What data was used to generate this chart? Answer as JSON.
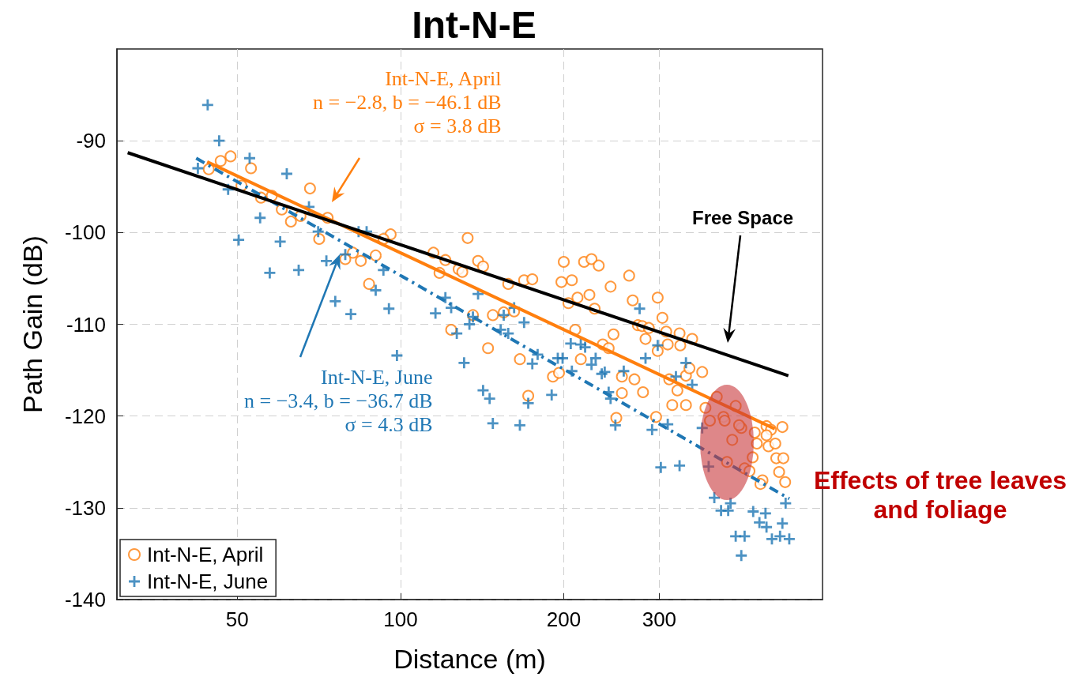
{
  "chart_data": {
    "type": "scatter",
    "title": "Int-N-E",
    "xlabel": "Distance (m)",
    "ylabel": "Path Gain (dB)",
    "log": "x",
    "grid": true,
    "legend": "bottom left",
    "xlim": [
      30,
      600
    ],
    "xticks": [
      50,
      100,
      200,
      300
    ],
    "ylim": [
      -140,
      -80
    ],
    "yticks": [
      -140,
      -130,
      -120,
      -110,
      -100,
      -90
    ],
    "annotations": [
      "Int-N-E, April\nn = −2.8, b = −46.1 dB\nσ = 3.8 dB",
      "Int-N-E, June\nn = −3.4, b = −36.7 dB\nσ = 4.3 dB",
      "Free Space",
      "Effects of tree leaves and foliage"
    ],
    "series": [
      {
        "name": "Int-N-E, April",
        "color": "#ff7f0e",
        "marker": "circle",
        "x": [
          44.3,
          46.6,
          48.6,
          53.0,
          50.9,
          55.3,
          57.9,
          60.4,
          62.8,
          65.4,
          68.1,
          70.8,
          73.4,
          81.7,
          79.1,
          84.5,
          87.5,
          90.0,
          95.9,
          93.0,
          115,
          121,
          128,
          130,
          118,
          133,
          139,
          142,
          136,
          124,
          145,
          148,
          155,
          162,
          158,
          169,
          175,
          166,
          172,
          191,
          196,
          198,
          207,
          200,
          204,
          212,
          223,
          228,
          218,
          225,
          232,
          244,
          210,
          215,
          236,
          242,
          247,
          256,
          256,
          270,
          280,
          250,
          264,
          268,
          274,
          279,
          287,
          283,
          298,
          304,
          309,
          298,
          311,
          327,
          328,
          345,
          360,
          313,
          324,
          336,
          341,
          317,
          336,
          296,
          365,
          383,
          372,
          394,
          415,
          396,
          409,
          425,
          421,
          450,
          454,
          400,
          431,
          440,
          446,
          465,
          461,
          473,
          482,
          477,
          491,
          506,
          493,
          508,
          499,
          512,
          473
        ],
        "values": [
          -93.1,
          -92.2,
          -91.7,
          -93.0,
          -94.9,
          -96.2,
          -96.0,
          -97.5,
          -98.8,
          -98.2,
          -95.2,
          -100.7,
          -98.4,
          -102.2,
          -102.9,
          -103.1,
          -105.6,
          -102.5,
          -100.2,
          -100.7,
          -102.2,
          -103.0,
          -104.0,
          -104.3,
          -104.4,
          -100.6,
          -103.1,
          -103.7,
          -109.0,
          -110.6,
          -112.6,
          -109.0,
          -108.7,
          -108.6,
          -105.6,
          -105.2,
          -105.1,
          -113.8,
          -117.8,
          -115.7,
          -115.3,
          -105.4,
          -105.2,
          -103.2,
          -107.7,
          -107.1,
          -106.8,
          -108.3,
          -103.2,
          -102.9,
          -103.6,
          -105.9,
          -110.6,
          -113.8,
          -112.2,
          -112.6,
          -111.1,
          -115.7,
          -117.5,
          -116.0,
          -117.4,
          -120.2,
          -104.7,
          -107.4,
          -110.1,
          -110.2,
          -110.4,
          -111.6,
          -107.1,
          -109.3,
          -110.8,
          -112.9,
          -112.2,
          -111.0,
          -112.3,
          -111.6,
          -115.2,
          -116.0,
          -117.2,
          -115.6,
          -114.8,
          -118.8,
          -118.8,
          -120.1,
          -119.1,
          -117.9,
          -120.5,
          -120.1,
          -118.9,
          -120.5,
          -122.6,
          -121.3,
          -121.0,
          -121.8,
          -123.0,
          -125.0,
          -125.7,
          -126.0,
          -124.5,
          -127.0,
          -127.4,
          -121.1,
          -121.5,
          -123.3,
          -123.0,
          -121.2,
          -124.6,
          -124.6,
          -126.1,
          -127.2,
          -122.1
        ]
      },
      {
        "name": "Int-N-E, June",
        "color": "#1f77b4",
        "marker": "cross",
        "x": [
          44.1,
          46.3,
          52.7,
          61.7,
          42.3,
          48.1,
          50.3,
          55.1,
          60.0,
          57.4,
          64.9,
          67.8,
          70.5,
          73.0,
          75.8,
          81.0,
          79.1,
          83.7,
          86.6,
          90.0,
          93.0,
          95.2,
          98.5,
          116,
          121,
          124,
          127,
          131,
          134,
          139,
          136,
          142,
          146,
          148,
          153,
          155,
          158,
          162,
          166,
          169,
          172,
          175,
          179,
          190,
          195,
          199,
          206,
          207,
          215,
          219,
          225,
          229,
          235,
          238,
          242,
          244,
          249,
          258,
          276,
          283,
          291,
          298,
          311,
          322,
          336,
          345,
          302,
          327,
          360,
          370,
          379,
          390,
          402,
          406,
          415,
          425,
          431,
          447,
          459,
          471,
          473,
          484,
          501,
          506,
          513,
          521
        ],
        "values": [
          -86.1,
          -90.0,
          -91.9,
          -93.6,
          -93.0,
          -95.3,
          -100.8,
          -98.4,
          -101.0,
          -104.4,
          -104.1,
          -97.2,
          -99.9,
          -103.1,
          -107.5,
          -108.9,
          -102.4,
          -99.9,
          -99.9,
          -106.3,
          -104.1,
          -108.3,
          -113.4,
          -108.8,
          -107.1,
          -108.2,
          -111.0,
          -114.2,
          -110.0,
          -106.7,
          -109.2,
          -117.2,
          -118.1,
          -120.8,
          -110.6,
          -109.0,
          -111.0,
          -108.2,
          -121.0,
          -109.8,
          -118.6,
          -114.3,
          -113.3,
          -117.7,
          -113.7,
          -113.7,
          -112.1,
          -115.1,
          -112.2,
          -112.5,
          -114.4,
          -113.7,
          -115.4,
          -115.2,
          -117.4,
          -118.1,
          -121.0,
          -115.1,
          -108.3,
          -113.7,
          -121.5,
          -112.3,
          -120.9,
          -115.7,
          -114.2,
          -116.6,
          -125.6,
          -125.4,
          -121.3,
          -125.5,
          -128.9,
          -130.3,
          -130.3,
          -129.5,
          -133.1,
          -135.2,
          -133.1,
          -130.4,
          -131.6,
          -130.6,
          -132.1,
          -133.4,
          -133.1,
          -131.7,
          -129.5,
          -133.4
        ]
      },
      {
        "type": "line",
        "color": "#ff7f0e",
        "line_style": "solid",
        "x": [
          44,
          490
        ],
        "values": [
          -92.3,
          -121.4
        ]
      },
      {
        "type": "line",
        "color": "#1f77b4",
        "line_style": "dashed",
        "x": [
          42,
          521
        ],
        "values": [
          -91.9,
          -129.0
        ]
      },
      {
        "type": "line",
        "color": "#000000",
        "line_style": "solid",
        "x": [
          31.4,
          519
        ],
        "values": [
          -91.3,
          -115.6
        ]
      }
    ]
  }
}
